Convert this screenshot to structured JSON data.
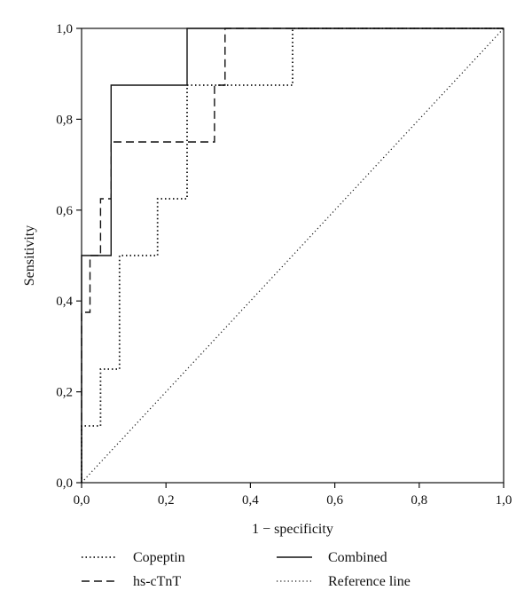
{
  "chart_data": {
    "type": "line",
    "title": "",
    "xlabel": "1 − specificity",
    "ylabel": "Sensitivity",
    "xlim": [
      0,
      1
    ],
    "ylim": [
      0,
      1
    ],
    "xticks": [
      "0,0",
      "0,2",
      "0,4",
      "0,6",
      "0,8",
      "1,0"
    ],
    "yticks": [
      "0,0",
      "0,2",
      "0,4",
      "0,6",
      "0,8",
      "1,0"
    ],
    "grid": false,
    "legend_position": "bottom",
    "series": [
      {
        "name": "Copeptin",
        "style": "dotted",
        "x": [
          0,
          0,
          0.045,
          0.045,
          0.09,
          0.09,
          0.18,
          0.18,
          0.25,
          0.25,
          0.5,
          0.5,
          1.0
        ],
        "y": [
          0,
          0.125,
          0.125,
          0.25,
          0.25,
          0.5,
          0.5,
          0.625,
          0.625,
          0.875,
          0.875,
          1.0,
          1.0
        ]
      },
      {
        "name": "hs-cTnT",
        "style": "dashed",
        "x": [
          0,
          0,
          0.02,
          0.02,
          0.045,
          0.045,
          0.07,
          0.07,
          0.315,
          0.315,
          0.34,
          0.34,
          1.0
        ],
        "y": [
          0,
          0.375,
          0.375,
          0.5,
          0.5,
          0.625,
          0.625,
          0.75,
          0.75,
          0.875,
          0.875,
          1.0,
          1.0
        ]
      },
      {
        "name": "Combined",
        "style": "solid",
        "x": [
          0,
          0,
          0.07,
          0.07,
          0.25,
          0.25,
          1.0
        ],
        "y": [
          0,
          0.5,
          0.5,
          0.875,
          0.875,
          1.0,
          1.0
        ]
      },
      {
        "name": "Reference line",
        "style": "reference",
        "x": [
          0,
          1
        ],
        "y": [
          0,
          1
        ]
      }
    ]
  }
}
